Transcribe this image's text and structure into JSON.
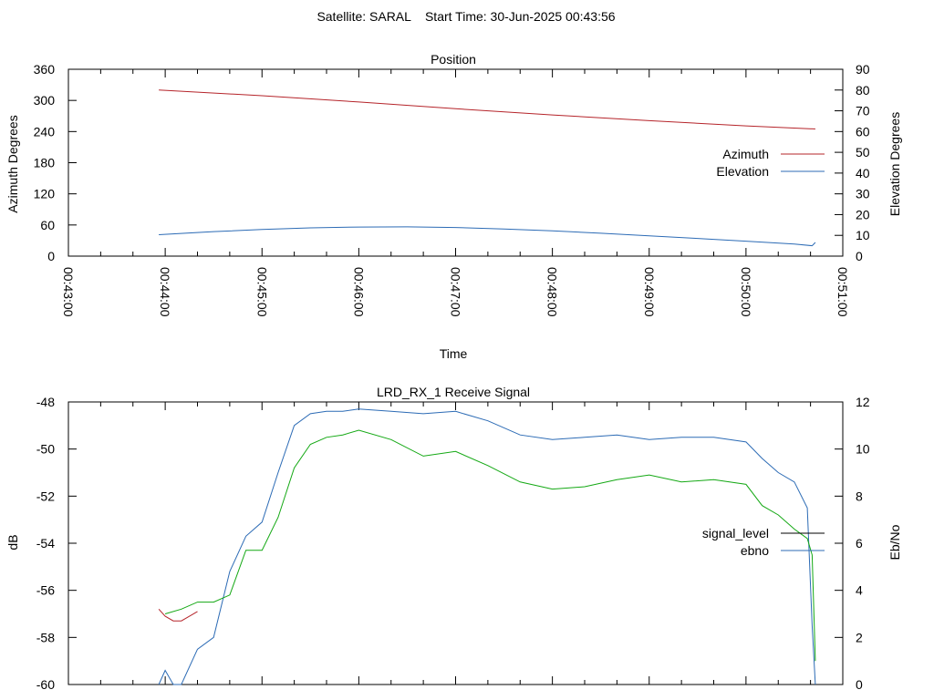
{
  "page_title": "Satellite: SARAL    Start Time: 30-Jun-2025 00:43:56",
  "chart_data": [
    {
      "type": "line",
      "title": "Position",
      "xlabel": "Time",
      "ylabel": "Azimuth Degrees",
      "y2label": "Elevation Degrees",
      "xlim": [
        "00:43:00",
        "00:51:00"
      ],
      "ylim": [
        0,
        360
      ],
      "y2lim": [
        0,
        90
      ],
      "x_ticks": [
        "00:43:00",
        "00:44:00",
        "00:45:00",
        "00:46:00",
        "00:47:00",
        "00:48:00",
        "00:49:00",
        "00:50:00",
        "00:51:00"
      ],
      "y_ticks": [
        "0",
        "60",
        "120",
        "180",
        "240",
        "300",
        "360"
      ],
      "y2_ticks": [
        "0",
        "10",
        "20",
        "30",
        "40",
        "50",
        "60",
        "70",
        "80",
        "90"
      ],
      "legend": "right",
      "grid": false,
      "series": [
        {
          "name": "Azimuth",
          "color": "#b5242a",
          "axis": "y",
          "x": [
            "00:43:56",
            "00:45:00",
            "00:46:00",
            "00:47:00",
            "00:48:00",
            "00:49:00",
            "00:50:00",
            "00:50:43"
          ],
          "values": [
            320,
            309,
            297,
            284,
            272,
            261,
            251,
            245
          ]
        },
        {
          "name": "Elevation",
          "color": "#2c6bb5",
          "axis": "y2",
          "x": [
            "00:43:56",
            "00:44:30",
            "00:45:00",
            "00:45:30",
            "00:46:00",
            "00:46:30",
            "00:47:00",
            "00:47:30",
            "00:48:00",
            "00:48:30",
            "00:49:00",
            "00:49:30",
            "00:50:00",
            "00:50:30",
            "00:50:41",
            "00:50:43"
          ],
          "values": [
            10.3,
            11.8,
            12.8,
            13.6,
            14.0,
            14.1,
            13.8,
            13.1,
            12.2,
            11.0,
            9.8,
            8.5,
            7.2,
            5.8,
            5.0,
            6.6
          ]
        }
      ]
    },
    {
      "type": "line",
      "title": "LRD_RX_1 Receive Signal",
      "xlabel": "",
      "ylabel": "dB",
      "y2label": "Eb/No",
      "xlim": [
        "00:43:00",
        "00:51:00"
      ],
      "ylim": [
        -60,
        -48
      ],
      "y2lim": [
        0,
        12
      ],
      "y_ticks": [
        "-60",
        "-58",
        "-56",
        "-54",
        "-52",
        "-50",
        "-48"
      ],
      "y2_ticks": [
        "0",
        "2",
        "4",
        "6",
        "8",
        "10",
        "12"
      ],
      "legend": "right",
      "grid": false,
      "series": [
        {
          "name": "signal_level",
          "color": "#000000",
          "axis": "y",
          "x": [],
          "values": []
        },
        {
          "name": "ebno",
          "color": "#2c6bb5",
          "axis": "y2",
          "x": [
            "00:43:56",
            "00:44:00",
            "00:44:05",
            "00:44:10",
            "00:44:20",
            "00:44:30",
            "00:44:40",
            "00:44:50",
            "00:45:00",
            "00:45:10",
            "00:45:20",
            "00:45:30",
            "00:45:40",
            "00:45:50",
            "00:46:00",
            "00:46:20",
            "00:46:40",
            "00:47:00",
            "00:47:20",
            "00:47:40",
            "00:48:00",
            "00:48:20",
            "00:48:40",
            "00:49:00",
            "00:49:20",
            "00:49:40",
            "00:50:00",
            "00:50:10",
            "00:50:20",
            "00:50:30",
            "00:50:38",
            "00:50:41",
            "00:50:43"
          ],
          "values": [
            0.0,
            0.6,
            0.0,
            0.0,
            1.5,
            2.0,
            4.8,
            6.3,
            6.9,
            9.0,
            11.0,
            11.5,
            11.6,
            11.6,
            11.7,
            11.6,
            11.5,
            11.6,
            11.2,
            10.6,
            10.4,
            10.5,
            10.6,
            10.4,
            10.5,
            10.5,
            10.3,
            9.6,
            9.0,
            8.6,
            7.5,
            2.5,
            0.0
          ]
        },
        {
          "name": "",
          "color": "#13a813",
          "axis": "y",
          "x": [
            "00:44:00",
            "00:44:10",
            "00:44:20",
            "00:44:30",
            "00:44:40",
            "00:44:50",
            "00:45:00",
            "00:45:10",
            "00:45:20",
            "00:45:30",
            "00:45:40",
            "00:45:50",
            "00:46:00",
            "00:46:20",
            "00:46:40",
            "00:47:00",
            "00:47:20",
            "00:47:40",
            "00:48:00",
            "00:48:20",
            "00:48:40",
            "00:49:00",
            "00:49:20",
            "00:49:40",
            "00:50:00",
            "00:50:10",
            "00:50:20",
            "00:50:30",
            "00:50:38",
            "00:50:41",
            "00:50:43"
          ],
          "values": [
            -57.0,
            -56.8,
            -56.5,
            -56.5,
            -56.2,
            -54.3,
            -54.3,
            -52.9,
            -50.8,
            -49.8,
            -49.5,
            -49.4,
            -49.2,
            -49.6,
            -50.3,
            -50.1,
            -50.7,
            -51.4,
            -51.7,
            -51.6,
            -51.3,
            -51.1,
            -51.4,
            -51.3,
            -51.5,
            -52.4,
            -52.8,
            -53.4,
            -53.8,
            -54.5,
            -59.0
          ]
        },
        {
          "name": "",
          "color": "#b5242a",
          "axis": "y",
          "x": [
            "00:43:56",
            "00:44:00",
            "00:44:05",
            "00:44:10",
            "00:44:15",
            "00:44:20"
          ],
          "values": [
            -56.8,
            -57.1,
            -57.3,
            -57.3,
            -57.1,
            -56.9
          ]
        }
      ]
    }
  ]
}
